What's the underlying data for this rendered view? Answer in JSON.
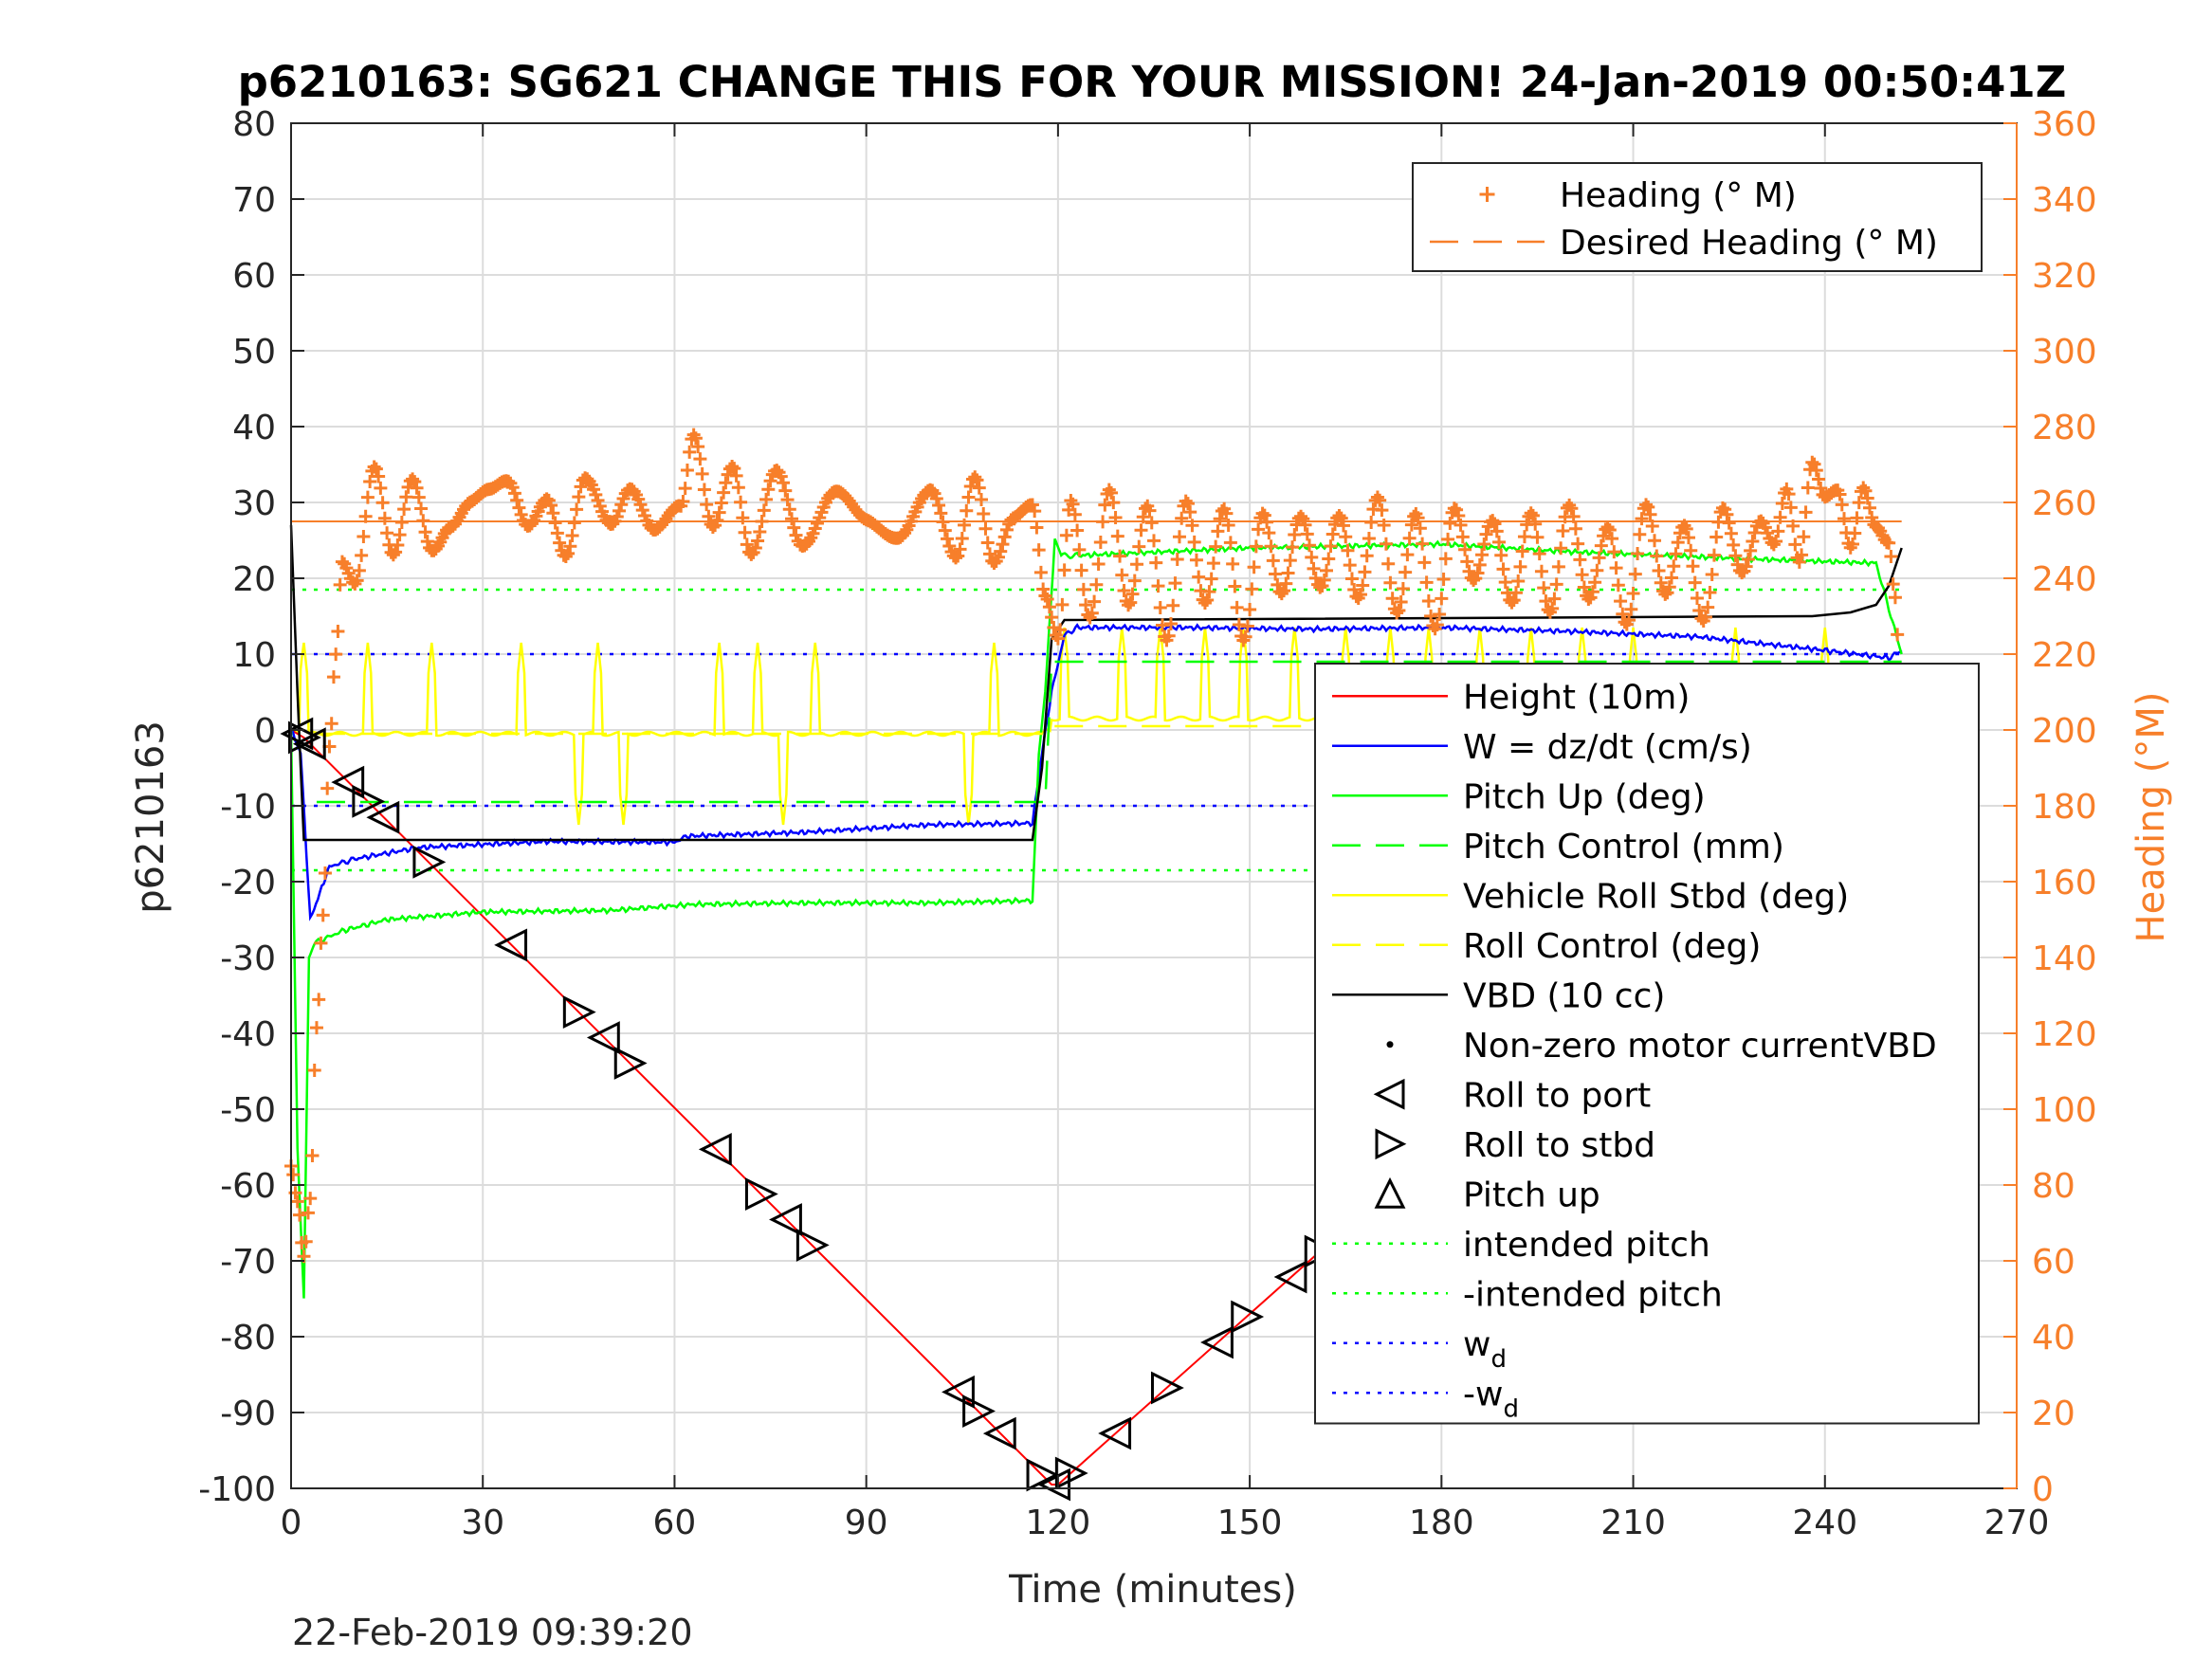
{
  "chart_data": {
    "type": "line",
    "title": "p6210163: SG621 CHANGE THIS FOR YOUR MISSION! 24-Jan-2019 00:50:41Z",
    "xlabel": "Time (minutes)",
    "ylabel": "p6210163",
    "ylabel_right": "Heading (°M)",
    "footer": "22-Feb-2019 09:39:20",
    "xlim": [
      0,
      270
    ],
    "ylim": [
      -100,
      80
    ],
    "ylim_right": [
      0,
      360
    ],
    "x_ticks": [
      "0",
      "30",
      "60",
      "90",
      "120",
      "150",
      "180",
      "210",
      "240",
      "270"
    ],
    "y_ticks": [
      "80",
      "70",
      "60",
      "50",
      "40",
      "30",
      "20",
      "10",
      "0",
      "-10",
      "-20",
      "-30",
      "-40",
      "-50",
      "-60",
      "-70",
      "-80",
      "-90",
      "-100"
    ],
    "y_ticks_right": [
      "360",
      "340",
      "320",
      "300",
      "280",
      "260",
      "240",
      "220",
      "200",
      "180",
      "160",
      "140",
      "120",
      "100",
      "80",
      "60",
      "40",
      "20",
      "0"
    ],
    "grid": true,
    "legend_top": {
      "placement": "top-right",
      "entries": [
        {
          "label": "Heading (° M)",
          "color": "#f77f2a",
          "marker": "+"
        },
        {
          "label": "Desired Heading (° M)",
          "color": "#f77f2a",
          "dash": "dashed"
        }
      ]
    },
    "legend_main": {
      "placement": "middle-right",
      "entries": [
        {
          "label": "Height (10m)",
          "color": "#ff0000"
        },
        {
          "label": "W = dz/dt (cm/s)",
          "color": "#0000ff"
        },
        {
          "label": "Pitch Up (deg)",
          "color": "#00ff00"
        },
        {
          "label": "Pitch Control (mm)",
          "color": "#00ff00",
          "dash": "dashed"
        },
        {
          "label": "Vehicle Roll Stbd (deg)",
          "color": "#ffff00"
        },
        {
          "label": "Roll Control (deg)",
          "color": "#ffff00",
          "dash": "dashed"
        },
        {
          "label": "VBD (10 cc)",
          "color": "#000000"
        },
        {
          "label": "Non-zero motor currentVBD",
          "color": "#000000",
          "marker": "dot"
        },
        {
          "label": "Roll to port",
          "color": "#000000",
          "marker": "triangle-left"
        },
        {
          "label": "Roll to stbd",
          "color": "#000000",
          "marker": "triangle-right"
        },
        {
          "label": "Pitch up",
          "color": "#000000",
          "marker": "triangle-up"
        },
        {
          "label": "intended pitch",
          "color": "#00ff00",
          "dash": "dotted"
        },
        {
          "label": "-intended pitch",
          "color": "#00ff00",
          "dash": "dotted"
        },
        {
          "label": "w",
          "sub": "d",
          "color": "#0000ff",
          "dash": "dotted"
        },
        {
          "label": "-w",
          "sub": "d",
          "color": "#0000ff",
          "dash": "dotted"
        }
      ]
    },
    "reference_lines": [
      {
        "name": "intended pitch",
        "y": 18.5,
        "color": "#00ff00"
      },
      {
        "name": "-intended pitch",
        "y": -18.5,
        "color": "#00ff00"
      },
      {
        "name": "w_d",
        "y": 10,
        "color": "#0000ff"
      },
      {
        "name": "-w_d",
        "y": -10,
        "color": "#0000ff"
      }
    ],
    "desired_heading": 255,
    "series": [
      {
        "name": "Height (10m)",
        "color": "#ff0000",
        "x": [
          0,
          2,
          119,
          120,
          252
        ],
        "y": [
          0,
          -1,
          -99.5,
          -99.5,
          -0.5
        ]
      },
      {
        "name": "W = dz/dt (cm/s)",
        "color": "#0000ff",
        "x": [
          0,
          1.5,
          3,
          6,
          10,
          20,
          40,
          60,
          62,
          80,
          100,
          116,
          117.5,
          119,
          121,
          123,
          140,
          160,
          180,
          200,
          220,
          240,
          250,
          252
        ],
        "y": [
          0,
          -3,
          -25,
          -18,
          -17,
          -15.5,
          -14.7,
          -14.8,
          -14,
          -13.5,
          -12.5,
          -12.3,
          -3,
          5,
          12.5,
          13.5,
          13.5,
          13.3,
          13.5,
          13,
          12.3,
          10.5,
          9.5,
          10.5
        ]
      },
      {
        "name": "Pitch Up (deg)",
        "color": "#00ff00",
        "x": [
          0,
          1,
          2,
          2.8,
          4,
          8,
          15,
          30,
          50,
          63,
          80,
          100,
          116,
          117,
          118,
          119.5,
          120.5,
          123,
          150,
          180,
          200,
          230,
          248,
          252
        ],
        "y": [
          0,
          -55,
          -75,
          -30,
          -28,
          -26.5,
          -25,
          -24,
          -23.8,
          -23,
          -22.8,
          -22.8,
          -22.5,
          -3,
          5,
          25,
          23,
          23,
          24,
          24.5,
          23.5,
          22.5,
          22,
          10
        ]
      },
      {
        "name": "Pitch Control (mm)",
        "color": "#00ff00",
        "dash": "dashed",
        "x": [
          4,
          118,
          119,
          252
        ],
        "y": [
          -9.5,
          -9.5,
          9,
          9
        ]
      },
      {
        "name": "VBD (10 cc)",
        "color": "#000000",
        "x": [
          0,
          1,
          1.5,
          2,
          116,
          117.5,
          119,
          121,
          238,
          244,
          248,
          250,
          252
        ],
        "y": [
          27,
          5,
          -5,
          -14.5,
          -14.5,
          -5,
          12,
          14.5,
          15,
          15.5,
          16.5,
          19,
          24
        ]
      },
      {
        "name": "Roll Control (deg)",
        "color": "#ffff00",
        "dash": "dashed",
        "x": [
          4,
          118,
          119,
          252
        ],
        "y": [
          -0.5,
          -0.5,
          0.5,
          0.5
        ]
      }
    ],
    "roll_spikes": [
      {
        "x": 2,
        "dir": 1
      },
      {
        "x": 12,
        "dir": 1
      },
      {
        "x": 22,
        "dir": 1
      },
      {
        "x": 36,
        "dir": 1
      },
      {
        "x": 45,
        "dir": -1
      },
      {
        "x": 48,
        "dir": 1
      },
      {
        "x": 52,
        "dir": -1
      },
      {
        "x": 67,
        "dir": 1
      },
      {
        "x": 73,
        "dir": 1
      },
      {
        "x": 77,
        "dir": -1
      },
      {
        "x": 82,
        "dir": 1
      },
      {
        "x": 106,
        "dir": -1
      },
      {
        "x": 110,
        "dir": 1
      },
      {
        "x": 121,
        "dir": 1
      },
      {
        "x": 130,
        "dir": 1
      },
      {
        "x": 136,
        "dir": 1
      },
      {
        "x": 143,
        "dir": 1
      },
      {
        "x": 149,
        "dir": 1
      },
      {
        "x": 157,
        "dir": 1
      },
      {
        "x": 165,
        "dir": 1
      },
      {
        "x": 172,
        "dir": 1
      },
      {
        "x": 178,
        "dir": 1
      },
      {
        "x": 186,
        "dir": 1
      },
      {
        "x": 194,
        "dir": 1
      },
      {
        "x": 202,
        "dir": 1
      },
      {
        "x": 210,
        "dir": 1
      },
      {
        "x": 218,
        "dir": -1
      },
      {
        "x": 226,
        "dir": 1
      },
      {
        "x": 233,
        "dir": -1
      },
      {
        "x": 240,
        "dir": 1
      },
      {
        "x": 247,
        "dir": -1
      }
    ],
    "heading_series": {
      "name": "Heading (° M)",
      "color": "#f77f2a",
      "x": [
        0,
        1,
        2,
        3,
        4,
        5,
        6,
        7,
        8,
        10,
        13,
        16,
        19,
        22,
        25,
        28,
        31,
        34,
        37,
        40,
        43,
        46,
        50,
        53,
        57,
        61,
        63,
        66,
        69,
        72,
        76,
        80,
        85,
        90,
        95,
        100,
        104,
        107,
        110,
        113,
        116,
        118,
        120,
        122,
        125,
        128,
        131,
        134,
        137,
        140,
        143,
        146,
        149,
        152,
        155,
        158,
        161,
        164,
        167,
        170,
        173,
        176,
        179,
        182,
        185,
        188,
        191,
        194,
        197,
        200,
        203,
        206,
        209,
        212,
        215,
        218,
        221,
        224,
        227,
        230,
        232,
        234,
        236,
        238,
        240,
        242,
        244,
        246,
        248,
        250,
        251,
        252
      ],
      "y": [
        85,
        75,
        60,
        75,
        120,
        150,
        195,
        220,
        245,
        240,
        270,
        245,
        265,
        248,
        255,
        260,
        262,
        265,
        255,
        262,
        245,
        265,
        255,
        265,
        252,
        258,
        278,
        255,
        270,
        245,
        268,
        250,
        262,
        255,
        252,
        262,
        245,
        268,
        245,
        255,
        258,
        235,
        225,
        262,
        230,
        262,
        232,
        260,
        225,
        260,
        232,
        258,
        225,
        258,
        235,
        255,
        238,
        258,
        235,
        260,
        230,
        258,
        228,
        258,
        238,
        255,
        235,
        258,
        230,
        258,
        235,
        255,
        228,
        258,
        235,
        255,
        230,
        258,
        240,
        255,
        250,
        265,
        245,
        270,
        260,
        262,
        248,
        265,
        255,
        250,
        235,
        195
      ]
    },
    "roll_markers": [
      {
        "x": 1,
        "t": "L"
      },
      {
        "x": 2,
        "t": "R"
      },
      {
        "x": 3,
        "t": "L"
      },
      {
        "x": 9,
        "t": "L"
      },
      {
        "x": 12,
        "t": "R"
      },
      {
        "x": 14.5,
        "t": "L"
      },
      {
        "x": 21.5,
        "t": "R"
      },
      {
        "x": 34.5,
        "t": "L"
      },
      {
        "x": 45,
        "t": "R"
      },
      {
        "x": 49,
        "t": "L"
      },
      {
        "x": 53,
        "t": "R"
      },
      {
        "x": 66.5,
        "t": "L"
      },
      {
        "x": 73.5,
        "t": "R"
      },
      {
        "x": 77.5,
        "t": "L"
      },
      {
        "x": 81.5,
        "t": "R"
      },
      {
        "x": 104.5,
        "t": "L"
      },
      {
        "x": 107.5,
        "t": "R"
      },
      {
        "x": 111,
        "t": "L"
      },
      {
        "x": 117.5,
        "t": "R"
      },
      {
        "x": 119.5,
        "t": "L"
      },
      {
        "x": 122,
        "t": "R"
      },
      {
        "x": 129,
        "t": "L"
      },
      {
        "x": 137,
        "t": "R"
      },
      {
        "x": 145,
        "t": "L"
      },
      {
        "x": 149.5,
        "t": "R"
      },
      {
        "x": 156.5,
        "t": "L"
      },
      {
        "x": 161,
        "t": "R"
      },
      {
        "x": 164.5,
        "t": "L"
      },
      {
        "x": 172.5,
        "t": "R"
      },
      {
        "x": 176,
        "t": "L"
      },
      {
        "x": 180,
        "t": "R"
      },
      {
        "x": 185,
        "t": "L"
      },
      {
        "x": 192.5,
        "t": "R"
      },
      {
        "x": 199,
        "t": "L"
      },
      {
        "x": 206,
        "t": "R"
      },
      {
        "x": 215,
        "t": "L"
      },
      {
        "x": 222.5,
        "t": "R"
      },
      {
        "x": 230,
        "t": "L"
      },
      {
        "x": 233,
        "t": "R"
      },
      {
        "x": 236,
        "t": "L"
      },
      {
        "x": 238,
        "t": "R"
      },
      {
        "x": 245.5,
        "t": "L"
      },
      {
        "x": 248,
        "t": "R"
      },
      {
        "x": 249.5,
        "t": "L"
      },
      {
        "x": 251.5,
        "t": "R"
      }
    ]
  }
}
